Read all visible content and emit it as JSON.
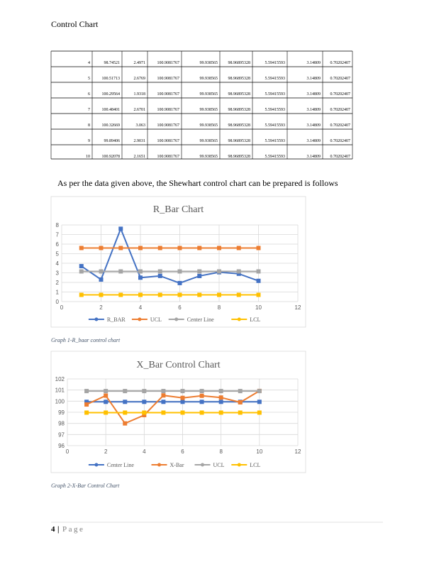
{
  "header": {
    "title": "Control Chart"
  },
  "table": {
    "rows": [
      [
        4,
        98.74521,
        2.4971,
        100.9081767,
        99.938565,
        98.96895328,
        5.59415593,
        3.14809,
        0.70202407
      ],
      [
        5,
        100.51713,
        2.6769,
        100.9081767,
        99.938565,
        98.96895328,
        5.59415593,
        3.14809,
        0.70202407
      ],
      [
        6,
        100.29564,
        1.9318,
        100.9081767,
        99.938565,
        98.96895328,
        5.59415593,
        3.14809,
        0.70202407
      ],
      [
        7,
        100.48401,
        2.6701,
        100.9081767,
        99.938565,
        98.96895328,
        5.59415593,
        3.14809,
        0.70202407
      ],
      [
        8,
        100.32669,
        3.063,
        100.9081767,
        99.938565,
        98.96895328,
        5.59415593,
        3.14809,
        0.70202407
      ],
      [
        9,
        99.89406,
        2.9031,
        100.9081767,
        99.938565,
        98.96895328,
        5.59415593,
        3.14809,
        0.70202407
      ],
      [
        10,
        100.92078,
        2.1651,
        100.9081767,
        99.938565,
        98.96895328,
        5.59415593,
        3.14809,
        0.70202407
      ]
    ]
  },
  "paragraph": "As per the data given above, the Shewhart control chart can be prepared is follows",
  "chart_data": [
    {
      "type": "line",
      "title": "R_Bar Chart",
      "x": [
        1,
        2,
        3,
        4,
        5,
        6,
        7,
        8,
        9,
        10
      ],
      "xlim": [
        0,
        12
      ],
      "xticks": [
        0,
        2,
        4,
        6,
        8,
        10,
        12
      ],
      "ylim": [
        0,
        8
      ],
      "yticks": [
        0,
        1,
        2,
        3,
        4,
        5,
        6,
        7,
        8
      ],
      "grid": true,
      "series": [
        {
          "name": "R_BAR",
          "color": "#4472c4",
          "values": [
            3.7,
            2.3,
            7.6,
            2.4971,
            2.6769,
            1.9318,
            2.6701,
            3.063,
            2.9031,
            2.1651
          ]
        },
        {
          "name": "UCL",
          "color": "#ed7d31",
          "values": [
            5.59415593,
            5.59415593,
            5.59415593,
            5.59415593,
            5.59415593,
            5.59415593,
            5.59415593,
            5.59415593,
            5.59415593,
            5.59415593
          ]
        },
        {
          "name": "Center Line",
          "color": "#a5a5a5",
          "values": [
            3.14809,
            3.14809,
            3.14809,
            3.14809,
            3.14809,
            3.14809,
            3.14809,
            3.14809,
            3.14809,
            3.14809
          ]
        },
        {
          "name": "LCL",
          "color": "#ffc000",
          "values": [
            0.70202407,
            0.70202407,
            0.70202407,
            0.70202407,
            0.70202407,
            0.70202407,
            0.70202407,
            0.70202407,
            0.70202407,
            0.70202407
          ]
        }
      ],
      "caption": "Graph 1-R_baar control chart"
    },
    {
      "type": "line",
      "title": "X_Bar Control Chart",
      "x": [
        1,
        2,
        3,
        4,
        5,
        6,
        7,
        8,
        9,
        10
      ],
      "xlim": [
        0,
        12
      ],
      "xticks": [
        0,
        2,
        4,
        6,
        8,
        10,
        12
      ],
      "ylim": [
        96,
        102
      ],
      "yticks": [
        96,
        97,
        98,
        99,
        100,
        101,
        102
      ],
      "grid": true,
      "series": [
        {
          "name": "Center Line",
          "color": "#4472c4",
          "values": [
            99.938565,
            99.938565,
            99.938565,
            99.938565,
            99.938565,
            99.938565,
            99.938565,
            99.938565,
            99.938565,
            99.938565
          ]
        },
        {
          "name": "X-Bar",
          "color": "#ed7d31",
          "values": [
            99.7,
            100.5,
            98.0,
            98.74521,
            100.51713,
            100.29564,
            100.48401,
            100.32669,
            99.89406,
            100.92078
          ]
        },
        {
          "name": "UCL",
          "color": "#a5a5a5",
          "values": [
            100.9081767,
            100.9081767,
            100.9081767,
            100.9081767,
            100.9081767,
            100.9081767,
            100.9081767,
            100.9081767,
            100.9081767,
            100.9081767
          ]
        },
        {
          "name": "LCL",
          "color": "#ffc000",
          "values": [
            98.96895328,
            98.96895328,
            98.96895328,
            98.96895328,
            98.96895328,
            98.96895328,
            98.96895328,
            98.96895328,
            98.96895328,
            98.96895328
          ]
        }
      ],
      "caption": "Graph 2-X-Bar Control Chart"
    }
  ],
  "footer": {
    "page_number": "4",
    "separator": "|",
    "label": "Page"
  }
}
